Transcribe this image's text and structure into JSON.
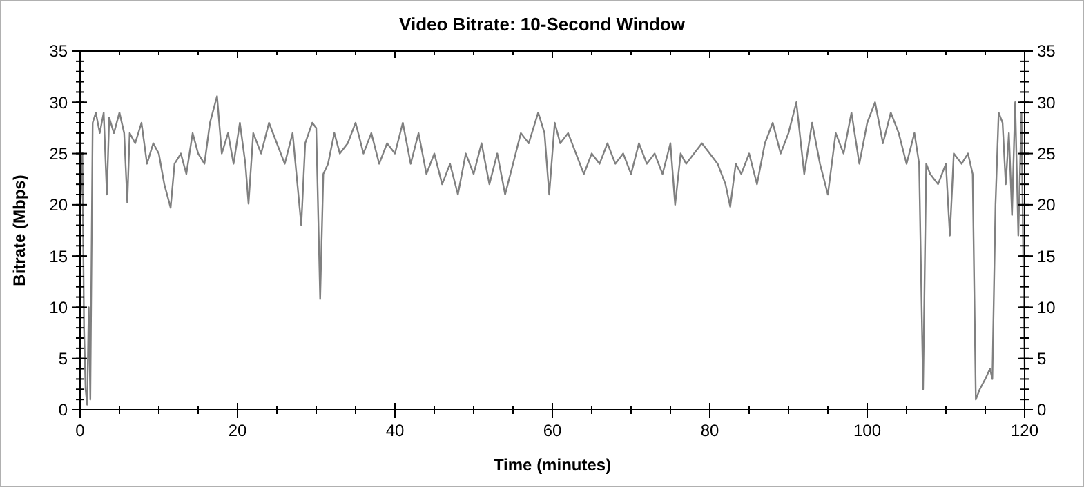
{
  "chart_data": {
    "type": "line",
    "title": "Video Bitrate: 10-Second Window",
    "xlabel": "Time (minutes)",
    "ylabel": "Bitrate (Mbps)",
    "xlim": [
      0,
      120
    ],
    "xticks": [
      0,
      {
        "value": 5,
        "label": null
      },
      {
        "value": 10,
        "label": null
      },
      {
        "value": 15,
        "label": null
      },
      20,
      {
        "value": 25,
        "label": null
      },
      {
        "value": 30,
        "label": null
      },
      {
        "value": 35,
        "label": null
      },
      40,
      {
        "value": 45,
        "label": null
      },
      {
        "value": 50,
        "label": null
      },
      {
        "value": 55,
        "label": null
      },
      60,
      {
        "value": 65,
        "label": null
      },
      {
        "value": 70,
        "label": null
      },
      {
        "value": 75,
        "label": null
      },
      80,
      {
        "value": 85,
        "label": null
      },
      {
        "value": 90,
        "label": null
      },
      {
        "value": 95,
        "label": null
      },
      100,
      {
        "value": 105,
        "label": null
      },
      {
        "value": 110,
        "label": null
      },
      {
        "value": 115,
        "label": null
      },
      120
    ],
    "ylim": [
      0,
      35
    ],
    "yticks": [
      0,
      5,
      10,
      15,
      20,
      25,
      30,
      35
    ],
    "y2lim": [
      0,
      35
    ],
    "y2ticks": [
      0,
      5,
      10,
      15,
      20,
      25,
      30,
      35
    ],
    "grid": false,
    "line_style": "solid",
    "series": [
      {
        "color": "#808080",
        "x": [
          0,
          0.3,
          0.5,
          0.7,
          0.9,
          1.1,
          1.3,
          1.6,
          2,
          2.5,
          3,
          3.4,
          3.7,
          4.3,
          5,
          5.6,
          6,
          6.3,
          7,
          7.8,
          8.5,
          9.3,
          10,
          10.7,
          11.5,
          12,
          12.8,
          13.5,
          14.3,
          15,
          15.8,
          16.5,
          17.4,
          18,
          18.8,
          19.5,
          20.3,
          21,
          21.4,
          22,
          23,
          24,
          25,
          26,
          27,
          28.1,
          28.6,
          29.5,
          30,
          30.5,
          30.9,
          31.5,
          32.3,
          33,
          34,
          35,
          36,
          37,
          38,
          39,
          40,
          41,
          42,
          43,
          44,
          45,
          46,
          47,
          48,
          49,
          50,
          51,
          52,
          53,
          54,
          55,
          56,
          57,
          58.2,
          59,
          59.6,
          60.3,
          61,
          62,
          63,
          64,
          65,
          66,
          67,
          68,
          69,
          70,
          71,
          72,
          73,
          74,
          75,
          75.6,
          76.3,
          77,
          78,
          79,
          80,
          81,
          82,
          82.6,
          83.3,
          84,
          85,
          86,
          87,
          88,
          89,
          90,
          91,
          92,
          93,
          94,
          95,
          96,
          97,
          98,
          99,
          100,
          101,
          102,
          103,
          104,
          105,
          106,
          106.6,
          107.1,
          107.5,
          108,
          109,
          110,
          110.5,
          111,
          112,
          112.8,
          113.4,
          113.8,
          114.3,
          115,
          115.6,
          115.9,
          116.3,
          116.7,
          117.2,
          117.6,
          118,
          118.4,
          118.8,
          119.2,
          119.6,
          120
        ],
        "values": [
          19,
          25,
          8,
          2,
          0.5,
          10,
          1,
          28,
          29,
          27,
          29,
          21,
          28.5,
          27,
          29,
          27,
          20.2,
          27,
          26,
          28,
          24,
          26,
          25,
          22,
          19.7,
          24,
          25,
          23,
          27,
          25,
          24,
          28,
          30.6,
          25,
          27,
          24,
          28,
          24,
          20.1,
          27,
          25,
          28,
          26,
          24,
          27,
          18,
          26,
          28,
          27.5,
          10.8,
          23,
          24,
          27,
          25,
          26,
          28,
          25,
          27,
          24,
          26,
          25,
          28,
          24,
          27,
          23,
          25,
          22,
          24,
          21,
          25,
          23,
          26,
          22,
          25,
          21,
          24,
          27,
          26,
          29,
          27,
          21,
          28,
          26,
          27,
          25,
          23,
          25,
          24,
          26,
          24,
          25,
          23,
          26,
          24,
          25,
          23,
          26,
          20,
          25,
          24,
          25,
          26,
          25,
          24,
          22,
          19.8,
          24,
          23,
          25,
          22,
          26,
          28,
          25,
          27,
          30,
          23,
          28,
          24,
          21,
          27,
          25,
          29,
          24,
          28,
          30,
          26,
          29,
          27,
          24,
          27,
          24,
          2,
          24,
          23,
          22,
          24,
          17,
          25,
          24,
          25,
          23,
          1,
          2,
          3,
          4,
          3,
          20,
          29,
          28,
          22,
          27,
          19,
          30,
          17,
          29,
          4
        ]
      }
    ]
  }
}
